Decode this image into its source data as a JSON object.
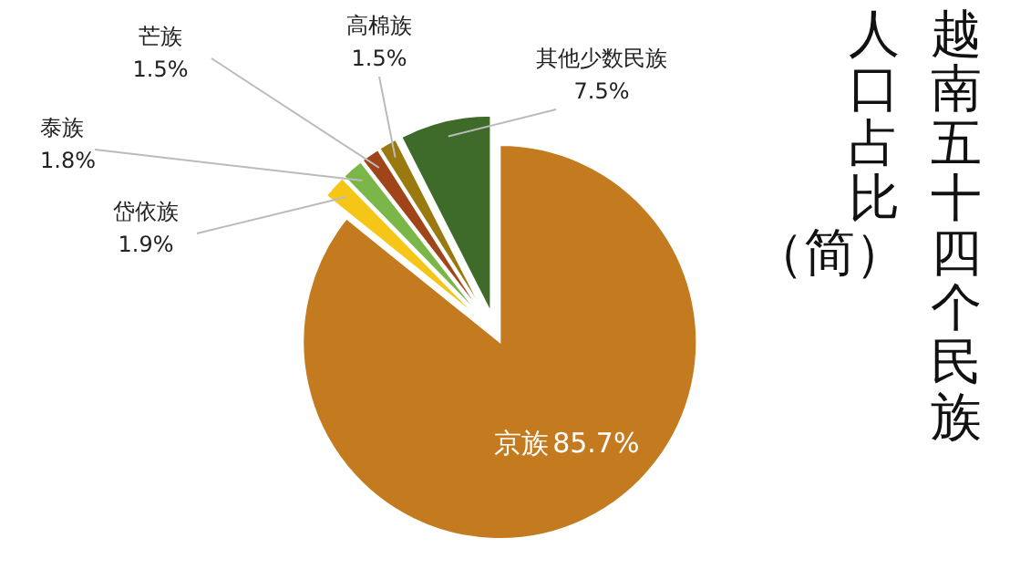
{
  "chart_data": {
    "type": "pie",
    "title": "越南五十四个民族人口占比（简）",
    "categories": [
      "京族",
      "岱依族",
      "泰族",
      "芒族",
      "高棉族",
      "其他少数民族"
    ],
    "values": [
      85.7,
      1.9,
      1.8,
      1.5,
      1.5,
      7.5
    ],
    "data_labels": true,
    "value_labels": [
      "85.7%",
      "1.9%",
      "1.8%",
      "1.5%",
      "1.5%",
      "7.5%"
    ],
    "colors": [
      "#c47a1e",
      "#f5c518",
      "#7ab648",
      "#a0451a",
      "#9a7a10",
      "#3e6b2a"
    ]
  }
}
